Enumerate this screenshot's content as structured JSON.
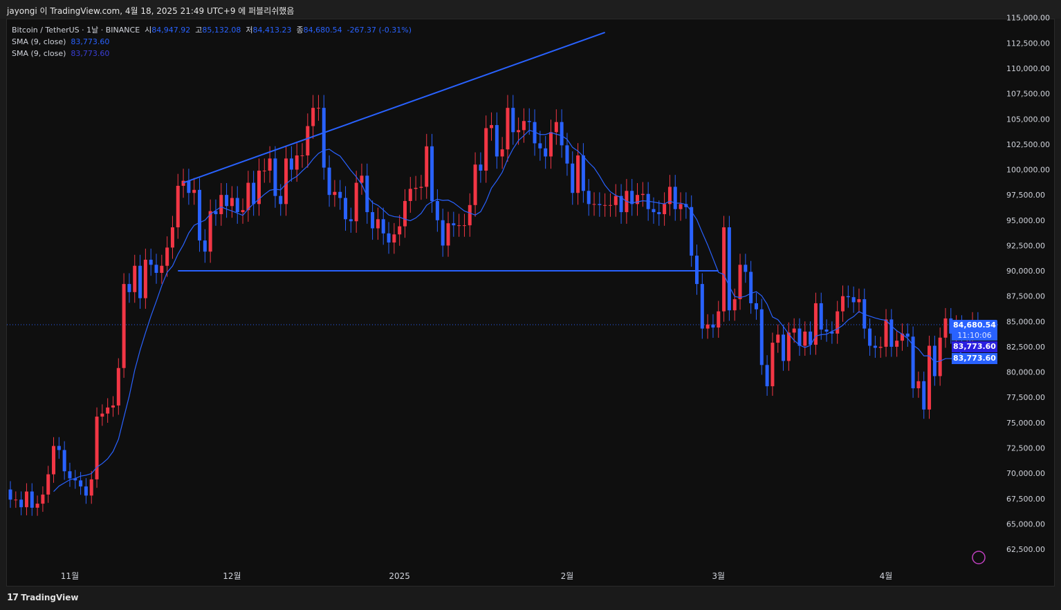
{
  "header": {
    "published": "jayongi 이 TradingView.com, 4월 18, 2025 21:49 UTC+9 에 퍼블리쉬했음"
  },
  "legend": {
    "symbol": "Bitcoin / TetherUS · 1날 · BINANCE",
    "open_label": "시",
    "open": "84,947.92",
    "high_label": "고",
    "high": "85,132.08",
    "low_label": "저",
    "low": "84,413.23",
    "close_label": "종",
    "close": "84,680.54",
    "change": "-267.37 (-0.31%)",
    "sma1_label": "SMA (9, close)",
    "sma1_value": "83,773.60",
    "sma2_label": "SMA (9, close)",
    "sma2_value": "83,773.60"
  },
  "price_tags": {
    "last": "84,680.54",
    "countdown": "11:10:06",
    "sma1": "83,773.60",
    "sma2": "83,773.60"
  },
  "footer": {
    "brand": "TradingView"
  },
  "colors": {
    "up": "#f23645",
    "down": "#2962ff",
    "sma": "#2962ff",
    "drawing": "#2962ff",
    "background": "#0f0f0f"
  },
  "chart_data": {
    "type": "candlestick",
    "symbol": "BTCUSDT",
    "interval": "1D",
    "x_start": "2024-10-21",
    "x_end": "2025-04-18",
    "first_open": 68400,
    "closes": [
      67400,
      67400,
      66650,
      68200,
      66600,
      67000,
      67900,
      69900,
      72700,
      72300,
      70200,
      69500,
      69300,
      68700,
      67800,
      69400,
      75600,
      75900,
      76500,
      76700,
      80400,
      88700,
      87900,
      90500,
      87300,
      91100,
      90600,
      89800,
      90500,
      92300,
      94300,
      98400,
      98900,
      97700,
      98000,
      93000,
      91900,
      95900,
      95600,
      97500,
      96400,
      97200,
      95800,
      96000,
      98700,
      96600,
      99900,
      99900,
      101100,
      97400,
      96600,
      101100,
      100000,
      101400,
      101400,
      104300,
      106100,
      106100,
      100200,
      97500,
      97800,
      97200,
      95100,
      94900,
      98700,
      99400,
      95800,
      94200,
      95100,
      93700,
      92800,
      93600,
      94400,
      96900,
      98100,
      98200,
      98300,
      102300,
      96900,
      95000,
      92500,
      94700,
      94500,
      94500,
      94500,
      96500,
      100500,
      99900,
      104100,
      104400,
      101300,
      102000,
      106100,
      103700,
      103900,
      104800,
      104700,
      102600,
      102100,
      101300,
      103700,
      104700,
      102400,
      100600,
      97700,
      101400,
      97900,
      96600,
      96600,
      96500,
      96500,
      96500,
      97400,
      95800,
      97900,
      96600,
      97500,
      97600,
      96100,
      95800,
      95600,
      96600,
      98300,
      96100,
      96600,
      96300,
      91500,
      88700,
      84300,
      84700,
      84400,
      86000,
      94300,
      86100,
      87200,
      90600,
      89900,
      86800,
      86200,
      80700,
      78600,
      82900,
      83700,
      81100,
      83900,
      84300,
      82600,
      84000,
      82700,
      86800,
      84200,
      84000,
      83800,
      86000,
      87500,
      87400,
      86900,
      87200,
      84300,
      82600,
      82400,
      82500,
      85200,
      82500,
      83100,
      83800,
      83500,
      78400,
      79100,
      76300,
      82600,
      79600,
      83400,
      85300,
      83800,
      84600,
      83600,
      84000,
      84900,
      84680.54
    ],
    "indicators": [
      {
        "name": "SMA (9, close)",
        "period": 9
      }
    ],
    "drawings": [
      {
        "type": "trend_line",
        "from": {
          "date": "2024-11-22",
          "price": 98700
        },
        "to": {
          "date": "2025-02-08",
          "price": 113550
        }
      },
      {
        "type": "horizontal_segment",
        "from": {
          "date": "2024-11-21",
          "price": 90000
        },
        "to": {
          "date": "2025-03-01",
          "price": 90000
        }
      }
    ],
    "ylim": [
      61000,
      115000
    ],
    "y_ticks": [
      "62,500.00",
      "65,000.00",
      "67,500.00",
      "70,000.00",
      "72,500.00",
      "75,000.00",
      "77,500.00",
      "80,000.00",
      "82,500.00",
      "85,000.00",
      "87,500.00",
      "90,000.00",
      "92,500.00",
      "95,000.00",
      "97,500.00",
      "100,000.00",
      "102,500.00",
      "105,000.00",
      "107,500.00",
      "110,000.00",
      "112,500.00",
      "115,000.00"
    ],
    "x_ticks": [
      {
        "label": "11월",
        "date": "2024-11-01"
      },
      {
        "label": "12월",
        "date": "2024-12-01"
      },
      {
        "label": "2025",
        "date": "2025-01-01"
      },
      {
        "label": "2월",
        "date": "2025-02-01"
      },
      {
        "label": "3월",
        "date": "2025-03-01"
      },
      {
        "label": "4월",
        "date": "2025-04-01"
      }
    ],
    "grid": false
  }
}
